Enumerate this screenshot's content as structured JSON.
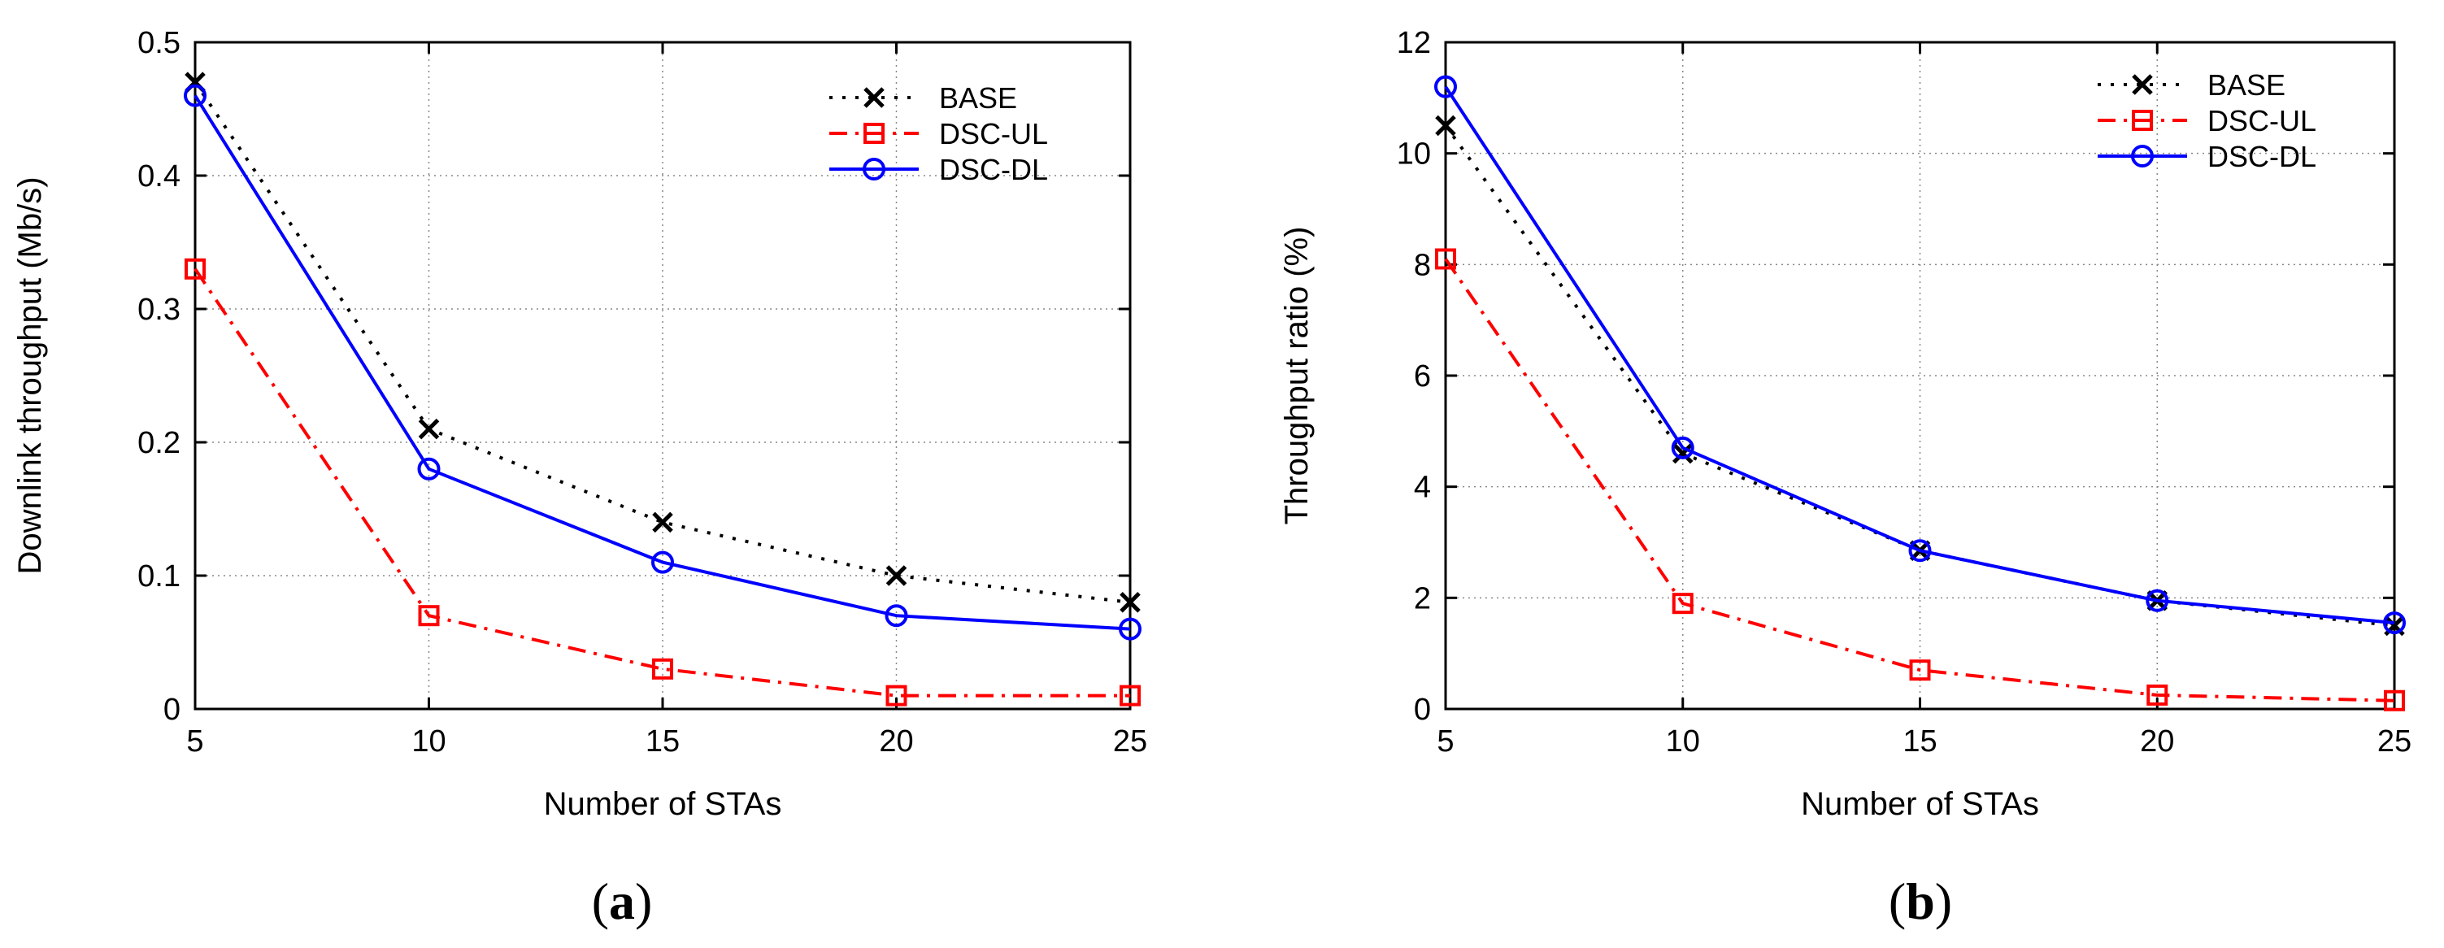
{
  "chart_data": [
    {
      "type": "line",
      "panel_label": "a",
      "xlabel": "Number of STAs",
      "ylabel": "Downlink throughput (Mb/s)",
      "x": [
        5,
        10,
        15,
        20,
        25
      ],
      "xticks": [
        5,
        10,
        15,
        20,
        25
      ],
      "yticks": [
        0,
        0.1,
        0.2,
        0.3,
        0.4,
        0.5
      ],
      "xlim": [
        5,
        25
      ],
      "ylim": [
        0,
        0.5
      ],
      "grid": true,
      "legend_position": "top-right",
      "series": [
        {
          "name": "BASE",
          "color": "#000000",
          "marker": "x",
          "dash": "dotted",
          "values": [
            0.47,
            0.21,
            0.14,
            0.1,
            0.08
          ]
        },
        {
          "name": "DSC-UL",
          "color": "#ff0000",
          "marker": "square",
          "dash": "dashdot",
          "values": [
            0.33,
            0.07,
            0.03,
            0.01,
            0.01
          ]
        },
        {
          "name": "DSC-DL",
          "color": "#0000ff",
          "marker": "circle",
          "dash": "solid",
          "values": [
            0.46,
            0.18,
            0.11,
            0.07,
            0.06
          ]
        }
      ]
    },
    {
      "type": "line",
      "panel_label": "b",
      "xlabel": "Number of STAs",
      "ylabel": "Throughput ratio (%)",
      "x": [
        5,
        10,
        15,
        20,
        25
      ],
      "xticks": [
        5,
        10,
        15,
        20,
        25
      ],
      "yticks": [
        0,
        2,
        4,
        6,
        8,
        10,
        12
      ],
      "xlim": [
        5,
        25
      ],
      "ylim": [
        0,
        12
      ],
      "grid": true,
      "legend_position": "top-right",
      "series": [
        {
          "name": "BASE",
          "color": "#000000",
          "marker": "x",
          "dash": "dotted",
          "values": [
            10.5,
            4.6,
            2.85,
            1.95,
            1.5
          ]
        },
        {
          "name": "DSC-UL",
          "color": "#ff0000",
          "marker": "square",
          "dash": "dashdot",
          "values": [
            8.1,
            1.9,
            0.7,
            0.25,
            0.15
          ]
        },
        {
          "name": "DSC-DL",
          "color": "#0000ff",
          "marker": "circle",
          "dash": "solid",
          "values": [
            11.2,
            4.7,
            2.85,
            1.95,
            1.55
          ]
        }
      ]
    }
  ]
}
